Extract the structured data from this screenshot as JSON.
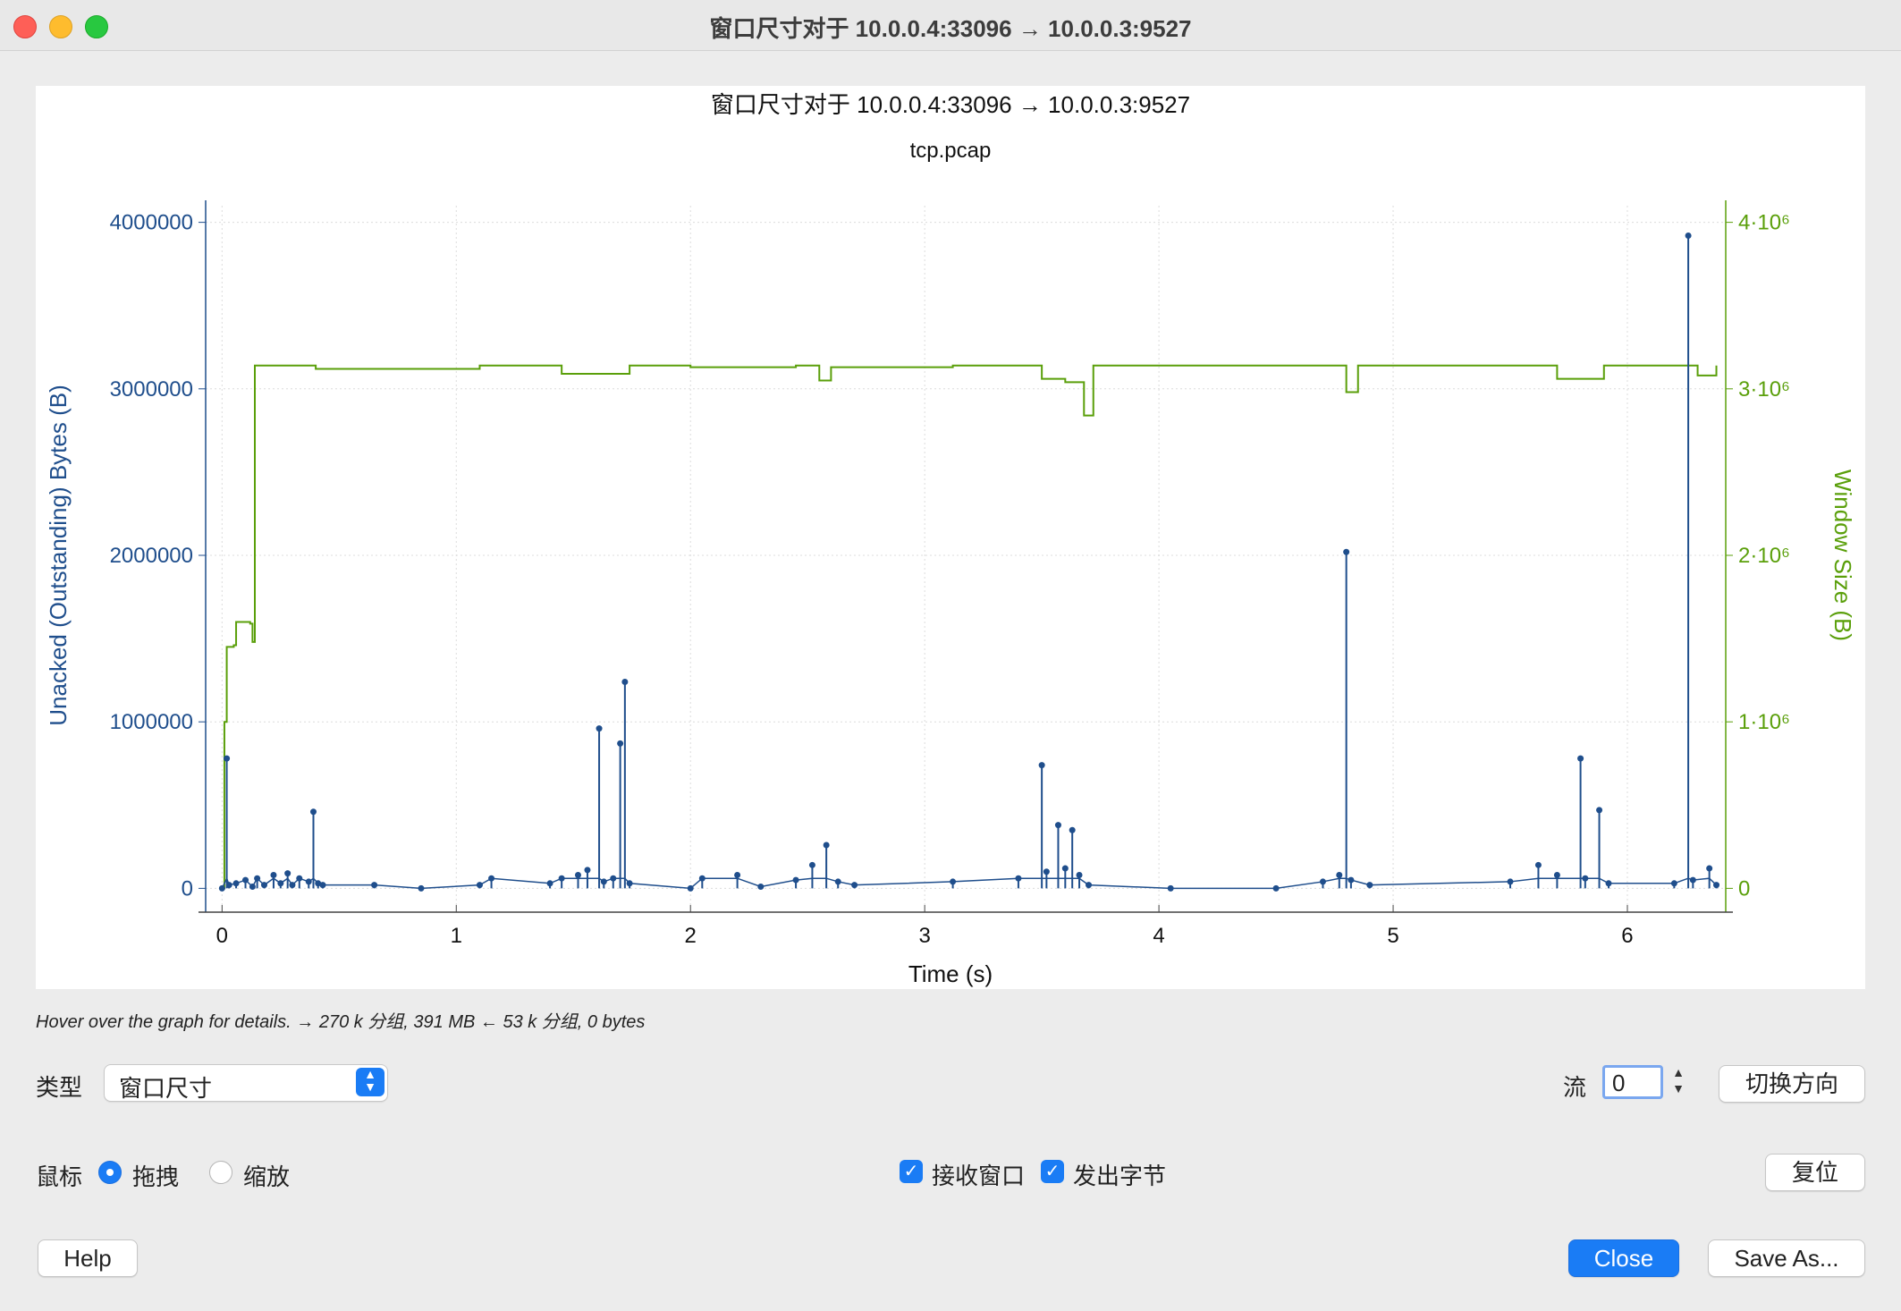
{
  "window": {
    "title": "窗口尺寸对于 10.0.0.4:33096 → 10.0.0.3:9527"
  },
  "chart_data": {
    "type": "line",
    "title": "窗口尺寸对于 10.0.0.4:33096 → 10.0.0.3:9527",
    "subtitle": "tcp.pcap",
    "xlabel": "Time (s)",
    "ylabel_left": "Unacked (Outstanding) Bytes (B)",
    "ylabel_right": "Window Size (B)",
    "xlim": [
      -0.07,
      6.42
    ],
    "ylim": [
      -100000,
      4100000
    ],
    "x_ticks": [
      "0",
      "1",
      "2",
      "3",
      "4",
      "5",
      "6"
    ],
    "y_ticks_left": [
      "0",
      "1000000",
      "2000000",
      "3000000",
      "4000000"
    ],
    "y_ticks_right": [
      "0",
      "1·10⁶",
      "2·10⁶",
      "3·10⁶",
      "4·10⁶"
    ],
    "grid": true,
    "colors": {
      "unacked": "#1f4e8c",
      "window": "#5a9f0a"
    },
    "series": [
      {
        "name": "Unacked (Outstanding) Bytes (B)",
        "points": [
          [
            0.0,
            0
          ],
          [
            0.02,
            780000
          ],
          [
            0.03,
            20000
          ],
          [
            0.06,
            30000
          ],
          [
            0.1,
            50000
          ],
          [
            0.13,
            10000
          ],
          [
            0.15,
            60000
          ],
          [
            0.18,
            20000
          ],
          [
            0.22,
            80000
          ],
          [
            0.25,
            30000
          ],
          [
            0.28,
            90000
          ],
          [
            0.3,
            20000
          ],
          [
            0.33,
            60000
          ],
          [
            0.37,
            40000
          ],
          [
            0.39,
            460000
          ],
          [
            0.41,
            30000
          ],
          [
            0.43,
            20000
          ],
          [
            0.65,
            20000
          ],
          [
            0.85,
            0
          ],
          [
            1.1,
            20000
          ],
          [
            1.15,
            60000
          ],
          [
            1.4,
            30000
          ],
          [
            1.45,
            60000
          ],
          [
            1.52,
            80000
          ],
          [
            1.56,
            110000
          ],
          [
            1.61,
            960000
          ],
          [
            1.63,
            40000
          ],
          [
            1.67,
            60000
          ],
          [
            1.7,
            870000
          ],
          [
            1.72,
            1240000
          ],
          [
            1.74,
            30000
          ],
          [
            2.0,
            0
          ],
          [
            2.05,
            60000
          ],
          [
            2.2,
            80000
          ],
          [
            2.3,
            10000
          ],
          [
            2.45,
            50000
          ],
          [
            2.52,
            140000
          ],
          [
            2.58,
            260000
          ],
          [
            2.63,
            40000
          ],
          [
            2.7,
            20000
          ],
          [
            3.12,
            40000
          ],
          [
            3.4,
            60000
          ],
          [
            3.5,
            740000
          ],
          [
            3.52,
            100000
          ],
          [
            3.57,
            380000
          ],
          [
            3.6,
            120000
          ],
          [
            3.63,
            350000
          ],
          [
            3.66,
            80000
          ],
          [
            3.7,
            20000
          ],
          [
            4.05,
            0
          ],
          [
            4.5,
            0
          ],
          [
            4.7,
            40000
          ],
          [
            4.77,
            80000
          ],
          [
            4.8,
            2020000
          ],
          [
            4.82,
            50000
          ],
          [
            4.9,
            20000
          ],
          [
            5.5,
            40000
          ],
          [
            5.62,
            140000
          ],
          [
            5.7,
            80000
          ],
          [
            5.8,
            780000
          ],
          [
            5.82,
            60000
          ],
          [
            5.88,
            470000
          ],
          [
            5.92,
            30000
          ],
          [
            6.2,
            30000
          ],
          [
            6.26,
            3920000
          ],
          [
            6.28,
            50000
          ],
          [
            6.35,
            120000
          ],
          [
            6.38,
            20000
          ]
        ]
      },
      {
        "name": "Window Size (B)",
        "points": [
          [
            0.0,
            0
          ],
          [
            0.01,
            1000000
          ],
          [
            0.02,
            1450000
          ],
          [
            0.05,
            1460000
          ],
          [
            0.06,
            1600000
          ],
          [
            0.12,
            1590000
          ],
          [
            0.13,
            1480000
          ],
          [
            0.14,
            3140000
          ],
          [
            0.4,
            3120000
          ],
          [
            1.1,
            3140000
          ],
          [
            1.45,
            3090000
          ],
          [
            1.74,
            3140000
          ],
          [
            2.0,
            3130000
          ],
          [
            2.45,
            3140000
          ],
          [
            2.55,
            3050000
          ],
          [
            2.6,
            3130000
          ],
          [
            3.12,
            3140000
          ],
          [
            3.5,
            3060000
          ],
          [
            3.6,
            3040000
          ],
          [
            3.68,
            2840000
          ],
          [
            3.72,
            3140000
          ],
          [
            4.6,
            3140000
          ],
          [
            4.8,
            2980000
          ],
          [
            4.85,
            3140000
          ],
          [
            5.5,
            3140000
          ],
          [
            5.7,
            3060000
          ],
          [
            5.9,
            3140000
          ],
          [
            6.25,
            3140000
          ],
          [
            6.3,
            3080000
          ],
          [
            6.38,
            3140000
          ]
        ]
      }
    ]
  },
  "hint": "Hover over the graph for details. → 270 k 分组, 391 MB ← 53 k 分组, 0 bytes",
  "controls": {
    "type_label": "类型",
    "type_value": "窗口尺寸",
    "stream_label": "流",
    "stream_value": "0",
    "switch_direction": "切换方向",
    "mouse_label": "鼠标",
    "drag_label": "拖拽",
    "zoom_label": "缩放",
    "recv_window_label": "接收窗口",
    "bytes_out_label": "发出字节",
    "reset_label": "复位"
  },
  "buttons": {
    "help": "Help",
    "close": "Close",
    "save_as": "Save As..."
  }
}
